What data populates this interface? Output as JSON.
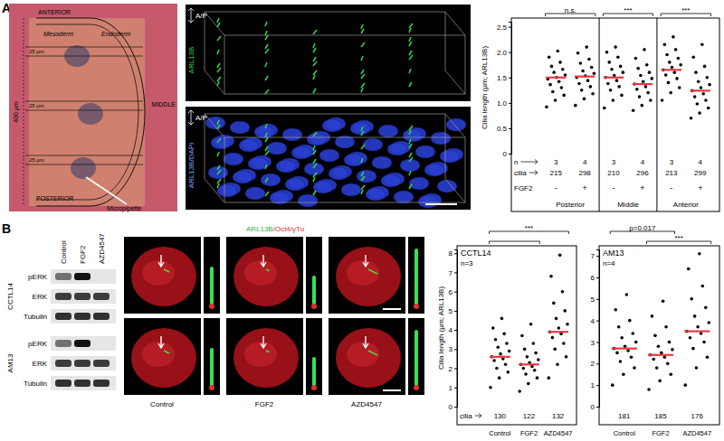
{
  "chart_data": [
    {
      "type": "strip",
      "ylabel": "Cilia length (µm; ARL13B)",
      "ylim": [
        0,
        2.6
      ],
      "yticks": [
        0,
        0.5,
        {
          "value": 1,
          "label": "1.0"
        },
        1.5,
        {
          "value": 2,
          "label": "2.0"
        },
        2.5
      ],
      "categories": [
        "-",
        "+",
        "-",
        "+",
        "-",
        "+"
      ],
      "category_title": "FGF2",
      "group_labels": [
        "Posterior",
        "Middle",
        "Anterior"
      ],
      "row_labels": [
        "n",
        "cilia"
      ],
      "n": [
        3,
        4,
        3,
        4,
        3,
        4
      ],
      "cilia": [
        215,
        298,
        210,
        296,
        213,
        299
      ],
      "values": [
        [
          0.92,
          1.05,
          1.15,
          1.22,
          1.3,
          1.36,
          1.42,
          1.47,
          1.5,
          1.55,
          1.6,
          1.66,
          1.72,
          1.8,
          1.9,
          2.02
        ],
        [
          0.95,
          1.08,
          1.18,
          1.25,
          1.32,
          1.38,
          1.44,
          1.5,
          1.53,
          1.58,
          1.63,
          1.7,
          1.78,
          1.86,
          1.98,
          2.1
        ],
        [
          0.9,
          1.05,
          1.15,
          1.25,
          1.32,
          1.38,
          1.44,
          1.5,
          1.54,
          1.6,
          1.66,
          1.72,
          1.8,
          1.9,
          2.0,
          2.1
        ],
        [
          0.85,
          0.95,
          1.05,
          1.12,
          1.2,
          1.27,
          1.32,
          1.37,
          1.42,
          1.48,
          1.54,
          1.6,
          1.68,
          1.75,
          1.88,
          2.05
        ],
        [
          1.05,
          1.2,
          1.3,
          1.4,
          1.48,
          1.55,
          1.6,
          1.65,
          1.7,
          1.75,
          1.8,
          1.88,
          1.95,
          2.05,
          2.15,
          2.3
        ],
        [
          0.7,
          0.8,
          0.9,
          0.98,
          1.05,
          1.12,
          1.18,
          1.24,
          1.3,
          1.36,
          1.42,
          1.5,
          1.6,
          1.72,
          1.9,
          2.15
        ]
      ],
      "means": [
        1.5,
        1.52,
        1.5,
        1.37,
        1.65,
        1.24
      ],
      "comparisons": [
        {
          "pair": [
            0,
            1
          ],
          "label": "n.s."
        },
        {
          "pair": [
            2,
            3
          ],
          "label": "***"
        },
        {
          "pair": [
            4,
            5
          ],
          "label": "***"
        }
      ],
      "color": "#000000"
    },
    {
      "type": "strip",
      "title": "CCTL14",
      "subtitle": "n=3",
      "ylabel": "Cilia length (µm; ARL13B)",
      "ylim": [
        0,
        8.2
      ],
      "yticks": [
        0,
        1,
        2,
        3,
        4,
        5,
        6,
        7,
        8
      ],
      "categories": [
        "Control",
        "FGF2",
        "AZD4547"
      ],
      "row_labels": [
        "cilia"
      ],
      "cilia": [
        130,
        122,
        132
      ],
      "values": [
        [
          1.0,
          1.5,
          1.8,
          2.0,
          2.2,
          2.4,
          2.5,
          2.6,
          2.75,
          2.9,
          3.1,
          3.3,
          3.5,
          3.8,
          4.1,
          4.6
        ],
        [
          0.8,
          1.2,
          1.5,
          1.7,
          1.9,
          2.0,
          2.1,
          2.2,
          2.3,
          2.45,
          2.6,
          2.8,
          3.0,
          3.3,
          3.7,
          4.3
        ],
        [
          1.5,
          2.2,
          2.6,
          3.0,
          3.3,
          3.6,
          3.8,
          3.9,
          4.1,
          4.3,
          4.6,
          5.0,
          5.4,
          6.0,
          6.8,
          7.9
        ]
      ],
      "means": [
        2.6,
        2.2,
        3.9
      ],
      "comparisons": [
        {
          "pair": [
            0,
            2
          ],
          "label": "***"
        },
        {
          "pair": [
            0,
            1
          ]
        }
      ],
      "color": "#000000"
    },
    {
      "type": "strip",
      "title": "AM13",
      "subtitle": "n=4",
      "ylim": [
        0,
        7.3
      ],
      "yticks": [
        0,
        1,
        2,
        3,
        4,
        5,
        6,
        7
      ],
      "categories": [
        "Control",
        "FGF2",
        "AZD4547"
      ],
      "cilia": [
        181,
        185,
        176
      ],
      "values": [
        [
          1.0,
          1.5,
          1.8,
          2.1,
          2.3,
          2.5,
          2.6,
          2.7,
          2.8,
          3.0,
          3.2,
          3.4,
          3.7,
          4.0,
          4.5,
          5.2
        ],
        [
          0.8,
          1.2,
          1.5,
          1.8,
          2.0,
          2.2,
          2.3,
          2.4,
          2.5,
          2.65,
          2.8,
          3.0,
          3.3,
          3.7,
          4.2,
          4.9
        ],
        [
          1.0,
          1.8,
          2.3,
          2.7,
          3.0,
          3.2,
          3.4,
          3.5,
          3.7,
          3.9,
          4.2,
          4.6,
          5.0,
          5.6,
          6.4,
          7.1
        ]
      ],
      "means": [
        2.7,
        2.4,
        3.5
      ],
      "comparisons": [
        {
          "pair": [
            0,
            1
          ],
          "label": "p=0.017"
        },
        {
          "pair": [
            1,
            2
          ],
          "label": "***"
        }
      ],
      "color": "#000000"
    }
  ],
  "figure": {
    "panel_labels": [
      "A",
      "B"
    ],
    "embryo": {
      "labels": [
        "ANTERIOR",
        "Mesoderm",
        "Endoderm",
        "MIDDLE",
        "POSTERIOR",
        "Micropipette"
      ],
      "scale_labels": [
        "400 µm",
        "25 µm",
        "25 µm",
        "25 µm"
      ]
    },
    "render3d": {
      "axis_labels": [
        "A/P",
        "A/P"
      ],
      "channels": [
        "ARL13B",
        "ARL13B/DAPI"
      ]
    },
    "blot": {
      "conditions": [
        "Control",
        "FGF2",
        "AZD4547"
      ],
      "cell_lines": [
        {
          "name": "CCTL14",
          "rows": [
            "pERK",
            "ERK",
            "Tubulin"
          ]
        },
        {
          "name": "AM13",
          "rows": [
            "pERK",
            "ERK",
            "Tubulin"
          ]
        }
      ]
    },
    "micrographs": {
      "title_parts": [
        {
          "text": "ARL13B",
          "color": "#2bb34a"
        },
        {
          "text": "/Oct4/γTu",
          "color": "#e0302a"
        }
      ],
      "conditions": [
        "Control",
        "FGF2",
        "AZD4547"
      ]
    }
  }
}
